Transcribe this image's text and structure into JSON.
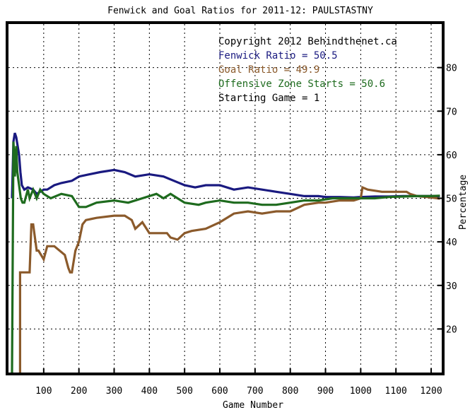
{
  "colors": {
    "background": "#ffffff",
    "frame": "#000000",
    "fenwick": "#1a1a80",
    "goal": "#8b5a2b",
    "ozs": "#1e6b1e",
    "legend_text": "#000000"
  },
  "chart_data": {
    "type": "line",
    "title": "Fenwick and Goal Ratios for 2011-12: PAULSTASTNY",
    "xlabel": "Game Number",
    "ylabel": "Percentage",
    "xlim": [
      0,
      1230
    ],
    "ylim": [
      10,
      90
    ],
    "x_ticks": [
      100,
      200,
      300,
      400,
      500,
      600,
      700,
      800,
      900,
      1000,
      1100,
      1200
    ],
    "x_tick_labels": [
      "100",
      "200",
      "300",
      "400",
      "500",
      "600",
      "700",
      "800",
      "900",
      "1000",
      "1100",
      "1200"
    ],
    "y_ticks": [
      20,
      30,
      40,
      50,
      60,
      70,
      80
    ],
    "y_tick_labels": [
      "20",
      "30",
      "40",
      "50",
      "60",
      "70",
      "80"
    ],
    "grid": true,
    "legend": [
      {
        "text": "Copyright 2012 Behindthenet.ca",
        "color_key": "legend_text"
      },
      {
        "text": "Fenwick Ratio = 50.5",
        "color_key": "fenwick"
      },
      {
        "text": "Goal Ratio = 49.9",
        "color_key": "goal"
      },
      {
        "text": "Offensive Zone Starts = 50.6",
        "color_key": "ozs"
      },
      {
        "text": "Starting Game = 1",
        "color_key": "legend_text"
      }
    ],
    "series": [
      {
        "name": "Fenwick Ratio",
        "color_key": "fenwick",
        "x": [
          10,
          14,
          18,
          22,
          26,
          30,
          34,
          38,
          45,
          55,
          70,
          80,
          90,
          100,
          110,
          130,
          150,
          180,
          200,
          230,
          260,
          300,
          330,
          360,
          400,
          440,
          470,
          500,
          530,
          560,
          600,
          640,
          680,
          720,
          760,
          800,
          840,
          880,
          900,
          940,
          980,
          1000,
          1040,
          1080,
          1120,
          1160,
          1200,
          1225
        ],
        "y": [
          50,
          63,
          65,
          64,
          62,
          60,
          56,
          53,
          52,
          52.5,
          52,
          51,
          51.5,
          52,
          52,
          53,
          53.5,
          54,
          55,
          55.5,
          56,
          56.5,
          56,
          55,
          55.5,
          55,
          54,
          53,
          52.5,
          53,
          53,
          52,
          52.5,
          52,
          51.5,
          51,
          50.5,
          50.5,
          50.3,
          50.3,
          50.2,
          50.3,
          50.4,
          50.4,
          50.5,
          50.5,
          50.5,
          50.5
        ]
      },
      {
        "name": "Goal Ratio",
        "color_key": "goal",
        "x": [
          25,
          33,
          33,
          60,
          65,
          70,
          75,
          80,
          85,
          100,
          110,
          130,
          160,
          170,
          175,
          180,
          190,
          200,
          210,
          220,
          250,
          300,
          330,
          350,
          360,
          380,
          400,
          450,
          460,
          480,
          500,
          520,
          560,
          600,
          640,
          680,
          720,
          760,
          800,
          840,
          880,
          900,
          940,
          980,
          1000,
          1005,
          1020,
          1060,
          1100,
          1130,
          1140,
          1160,
          1200,
          1225
        ],
        "y": [
          8,
          8,
          33,
          33,
          44,
          44,
          41,
          38,
          38,
          36,
          39,
          39,
          37,
          34,
          33,
          33,
          38,
          40,
          44,
          45,
          45.5,
          46,
          46,
          45,
          43,
          44.5,
          42,
          42,
          41,
          40.5,
          42,
          42.5,
          43,
          44.5,
          46.5,
          47,
          46.5,
          47,
          47,
          48.5,
          49,
          49,
          49.5,
          49.5,
          50,
          52.5,
          52,
          51.5,
          51.5,
          51.5,
          51,
          50.5,
          50.2,
          49.9
        ]
      },
      {
        "name": "Offensive Zone Starts",
        "color_key": "ozs",
        "x": [
          10,
          14,
          16,
          18,
          22,
          25,
          30,
          35,
          40,
          45,
          55,
          60,
          70,
          80,
          90,
          100,
          120,
          150,
          180,
          200,
          220,
          250,
          300,
          340,
          380,
          420,
          440,
          460,
          480,
          500,
          540,
          560,
          600,
          640,
          680,
          720,
          760,
          800,
          840,
          880,
          920,
          960,
          1000,
          1040,
          1080,
          1120,
          1160,
          1200,
          1225
        ],
        "y": [
          10,
          63,
          60,
          55,
          62,
          56,
          53,
          50,
          49,
          49,
          52,
          50,
          52,
          50,
          52,
          51,
          50,
          51,
          50.5,
          48,
          48,
          49,
          49.5,
          49,
          50,
          51,
          50,
          51,
          50,
          49,
          48.5,
          49,
          49.5,
          49,
          49,
          48.5,
          48.5,
          49,
          49.5,
          49.5,
          50,
          50,
          50,
          50,
          50.3,
          50.4,
          50.5,
          50.5,
          50.6
        ]
      }
    ]
  }
}
